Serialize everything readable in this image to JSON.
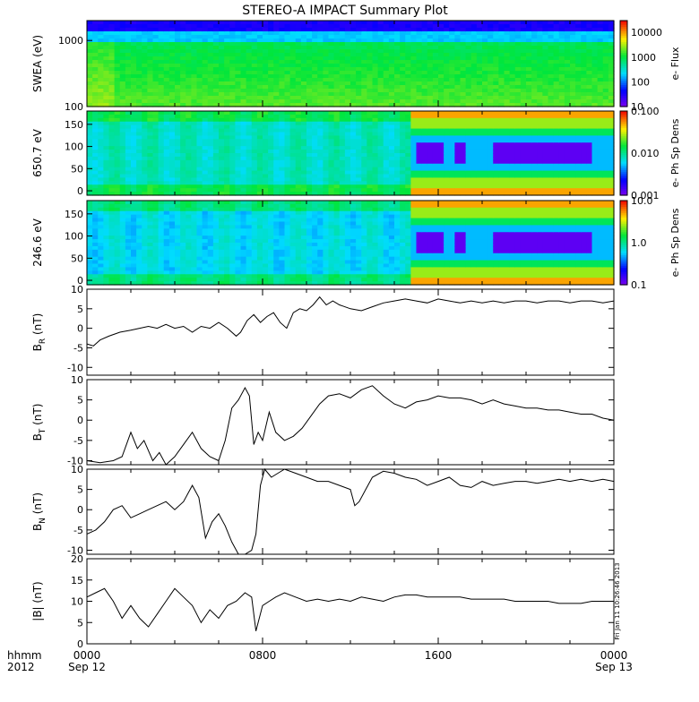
{
  "title": "STEREO-A IMPACT Summary Plot",
  "credit": "Fri Jan 11 10:26:46 2013",
  "colors": {
    "axis": "#000000",
    "trace": "#000000"
  },
  "x_axis": {
    "corner_labels": [
      "hhmm",
      "2012"
    ],
    "ticks": [
      {
        "hours": 0,
        "top": "0000",
        "bottom": "Sep 12"
      },
      {
        "hours": 8,
        "top": "0800",
        "bottom": ""
      },
      {
        "hours": 16,
        "top": "1600",
        "bottom": ""
      },
      {
        "hours": 24,
        "top": "0000",
        "bottom": "Sep 13"
      }
    ],
    "range_hours": [
      0,
      24
    ]
  },
  "chart_data": [
    {
      "type": "heatmap",
      "ylabel": "SWEA (eV)",
      "yscale": "log",
      "ylim": [
        100,
        2000
      ],
      "yticks": [
        "100",
        "1000"
      ],
      "colorbar": {
        "label": "e- Flux",
        "scale": "log",
        "ticks": [
          "10",
          "100",
          "1000",
          "10000"
        ],
        "range": [
          10,
          30000
        ]
      }
    },
    {
      "type": "heatmap",
      "ylabel": "650.7 eV",
      "ylim": [
        -10,
        180
      ],
      "yticks": [
        "0",
        "50",
        "100",
        "150"
      ],
      "colorbar": {
        "label": "e- Ph Sp Dens",
        "scale": "log",
        "ticks": [
          "0.001",
          "0.010",
          "0.100"
        ],
        "range": [
          0.001,
          0.1
        ]
      }
    },
    {
      "type": "heatmap",
      "ylabel": "246.6 eV",
      "ylim": [
        -10,
        180
      ],
      "yticks": [
        "0",
        "50",
        "100",
        "150"
      ],
      "colorbar": {
        "label": "e- Ph Sp Dens",
        "scale": "log",
        "ticks": [
          "0.1",
          "1.0",
          "10.0"
        ],
        "range": [
          0.1,
          10
        ]
      }
    },
    {
      "type": "line",
      "ylabel_main": "B",
      "ylabel_sub": "R",
      "ylabel_unit": " (nT)",
      "ylim": [
        -12,
        10
      ],
      "yticks": [
        "-10",
        "-5",
        "0",
        "5",
        "10"
      ],
      "x": [
        0,
        0.3,
        0.6,
        1,
        1.5,
        2,
        2.4,
        2.8,
        3.2,
        3.6,
        4,
        4.4,
        4.8,
        5.2,
        5.6,
        6,
        6.4,
        6.8,
        7,
        7.3,
        7.6,
        7.9,
        8.2,
        8.5,
        8.8,
        9.1,
        9.4,
        9.7,
        10,
        10.3,
        10.6,
        10.9,
        11.2,
        11.5,
        12,
        12.5,
        13,
        13.5,
        14,
        14.5,
        15,
        15.5,
        16,
        16.5,
        17,
        17.5,
        18,
        18.5,
        19,
        19.5,
        20,
        20.5,
        21,
        21.5,
        22,
        22.5,
        23,
        23.5,
        24
      ],
      "y": [
        -4,
        -4.5,
        -3,
        -2,
        -1,
        -0.5,
        0,
        0.5,
        0,
        1,
        0,
        0.5,
        -1,
        0.5,
        0,
        1.5,
        0,
        -2,
        -1,
        2,
        3.5,
        1.5,
        3,
        4,
        1.5,
        0,
        4,
        5,
        4.5,
        6,
        8,
        6,
        7,
        6,
        5,
        4.5,
        5.5,
        6.5,
        7,
        7.5,
        7,
        6.5,
        7.5,
        7,
        6.5,
        7,
        6.5,
        7,
        6.5,
        7,
        7,
        6.5,
        7,
        7,
        6.5,
        7,
        7,
        6.5,
        7
      ]
    },
    {
      "type": "line",
      "ylabel_main": "B",
      "ylabel_sub": "T",
      "ylabel_unit": " (nT)",
      "ylim": [
        -11,
        10
      ],
      "yticks": [
        "-10",
        "-5",
        "0",
        "5",
        "10"
      ],
      "x": [
        0,
        0.6,
        1.2,
        1.6,
        1.8,
        2,
        2.3,
        2.6,
        3,
        3.3,
        3.6,
        4,
        4.4,
        4.8,
        5.2,
        5.6,
        6,
        6.3,
        6.6,
        6.9,
        7.2,
        7.4,
        7.6,
        7.8,
        8,
        8.3,
        8.6,
        9,
        9.4,
        9.8,
        10.2,
        10.6,
        11,
        11.5,
        12,
        12.5,
        13,
        13.5,
        14,
        14.5,
        15,
        15.5,
        16,
        16.5,
        17,
        17.5,
        18,
        18.5,
        19,
        19.5,
        20,
        20.5,
        21,
        21.5,
        22,
        22.5,
        23,
        23.5,
        24
      ],
      "y": [
        -10,
        -10.5,
        -10,
        -9,
        -6,
        -3,
        -7,
        -5,
        -10,
        -8,
        -11,
        -9,
        -6,
        -3,
        -7,
        -9,
        -10,
        -5,
        3,
        5,
        8,
        6,
        -6,
        -3,
        -5,
        2,
        -3,
        -5,
        -4,
        -2,
        1,
        4,
        6,
        6.5,
        5.5,
        7.5,
        8.5,
        6,
        4,
        3,
        4.5,
        5,
        6,
        5.5,
        5.5,
        5,
        4,
        5,
        4,
        3.5,
        3,
        3,
        2.5,
        2.5,
        2,
        1.5,
        1.5,
        0.5,
        0
      ]
    },
    {
      "type": "line",
      "ylabel_main": "B",
      "ylabel_sub": "N",
      "ylabel_unit": " (nT)",
      "ylim": [
        -11,
        10
      ],
      "yticks": [
        "-10",
        "-5",
        "0",
        "5",
        "10"
      ],
      "x": [
        0,
        0.4,
        0.8,
        1.2,
        1.6,
        2,
        2.4,
        2.8,
        3.2,
        3.6,
        4,
        4.4,
        4.8,
        5.1,
        5.4,
        5.7,
        6,
        6.3,
        6.6,
        6.9,
        7.2,
        7.5,
        7.7,
        7.9,
        8.1,
        8.4,
        8.7,
        9,
        9.5,
        10,
        10.5,
        11,
        11.5,
        12,
        12.2,
        12.4,
        12.7,
        13,
        13.5,
        14,
        14.5,
        15,
        15.5,
        16,
        16.5,
        17,
        17.5,
        18,
        18.5,
        19,
        19.5,
        20,
        20.5,
        21,
        21.5,
        22,
        22.5,
        23,
        23.5,
        24
      ],
      "y": [
        -6,
        -5,
        -3,
        0,
        1,
        -2,
        -1,
        0,
        1,
        2,
        0,
        2,
        6,
        3,
        -7,
        -3,
        -1,
        -4,
        -8,
        -11,
        -12,
        -10,
        -6,
        6,
        10,
        8,
        9,
        10,
        9,
        8,
        7,
        7,
        6,
        5,
        1,
        2,
        5,
        8,
        9.5,
        9,
        8,
        7.5,
        6,
        7,
        8,
        6,
        5.5,
        7,
        6,
        6.5,
        7,
        7,
        6.5,
        7,
        7.5,
        7,
        7.5,
        7,
        7.5,
        7
      ]
    },
    {
      "type": "line",
      "ylabel_main": "|B| (nT)",
      "ylim": [
        0,
        20
      ],
      "yticks": [
        "0",
        "5",
        "10",
        "15",
        "20"
      ],
      "x": [
        0,
        0.4,
        0.8,
        1.2,
        1.6,
        2,
        2.4,
        2.8,
        3.2,
        3.6,
        4,
        4.4,
        4.8,
        5.2,
        5.6,
        6,
        6.4,
        6.8,
        7.2,
        7.5,
        7.7,
        8,
        8.3,
        8.6,
        9,
        9.5,
        10,
        10.5,
        11,
        11.5,
        12,
        12.5,
        13,
        13.5,
        14,
        14.5,
        15,
        15.5,
        16,
        16.5,
        17,
        17.5,
        18,
        18.5,
        19,
        19.5,
        20,
        20.5,
        21,
        21.5,
        22,
        22.5,
        23,
        23.5,
        24
      ],
      "y": [
        11,
        12,
        13,
        10,
        6,
        9,
        6,
        4,
        7,
        10,
        13,
        11,
        9,
        5,
        8,
        6,
        9,
        10,
        12,
        11,
        3,
        9,
        10,
        11,
        12,
        11,
        10,
        10.5,
        10,
        10.5,
        10,
        11,
        10.5,
        10,
        11,
        11.5,
        11.5,
        11,
        11,
        11,
        11,
        10.5,
        10.5,
        10.5,
        10.5,
        10,
        10,
        10,
        10,
        9.5,
        9.5,
        9.5,
        10,
        10,
        10
      ]
    }
  ]
}
